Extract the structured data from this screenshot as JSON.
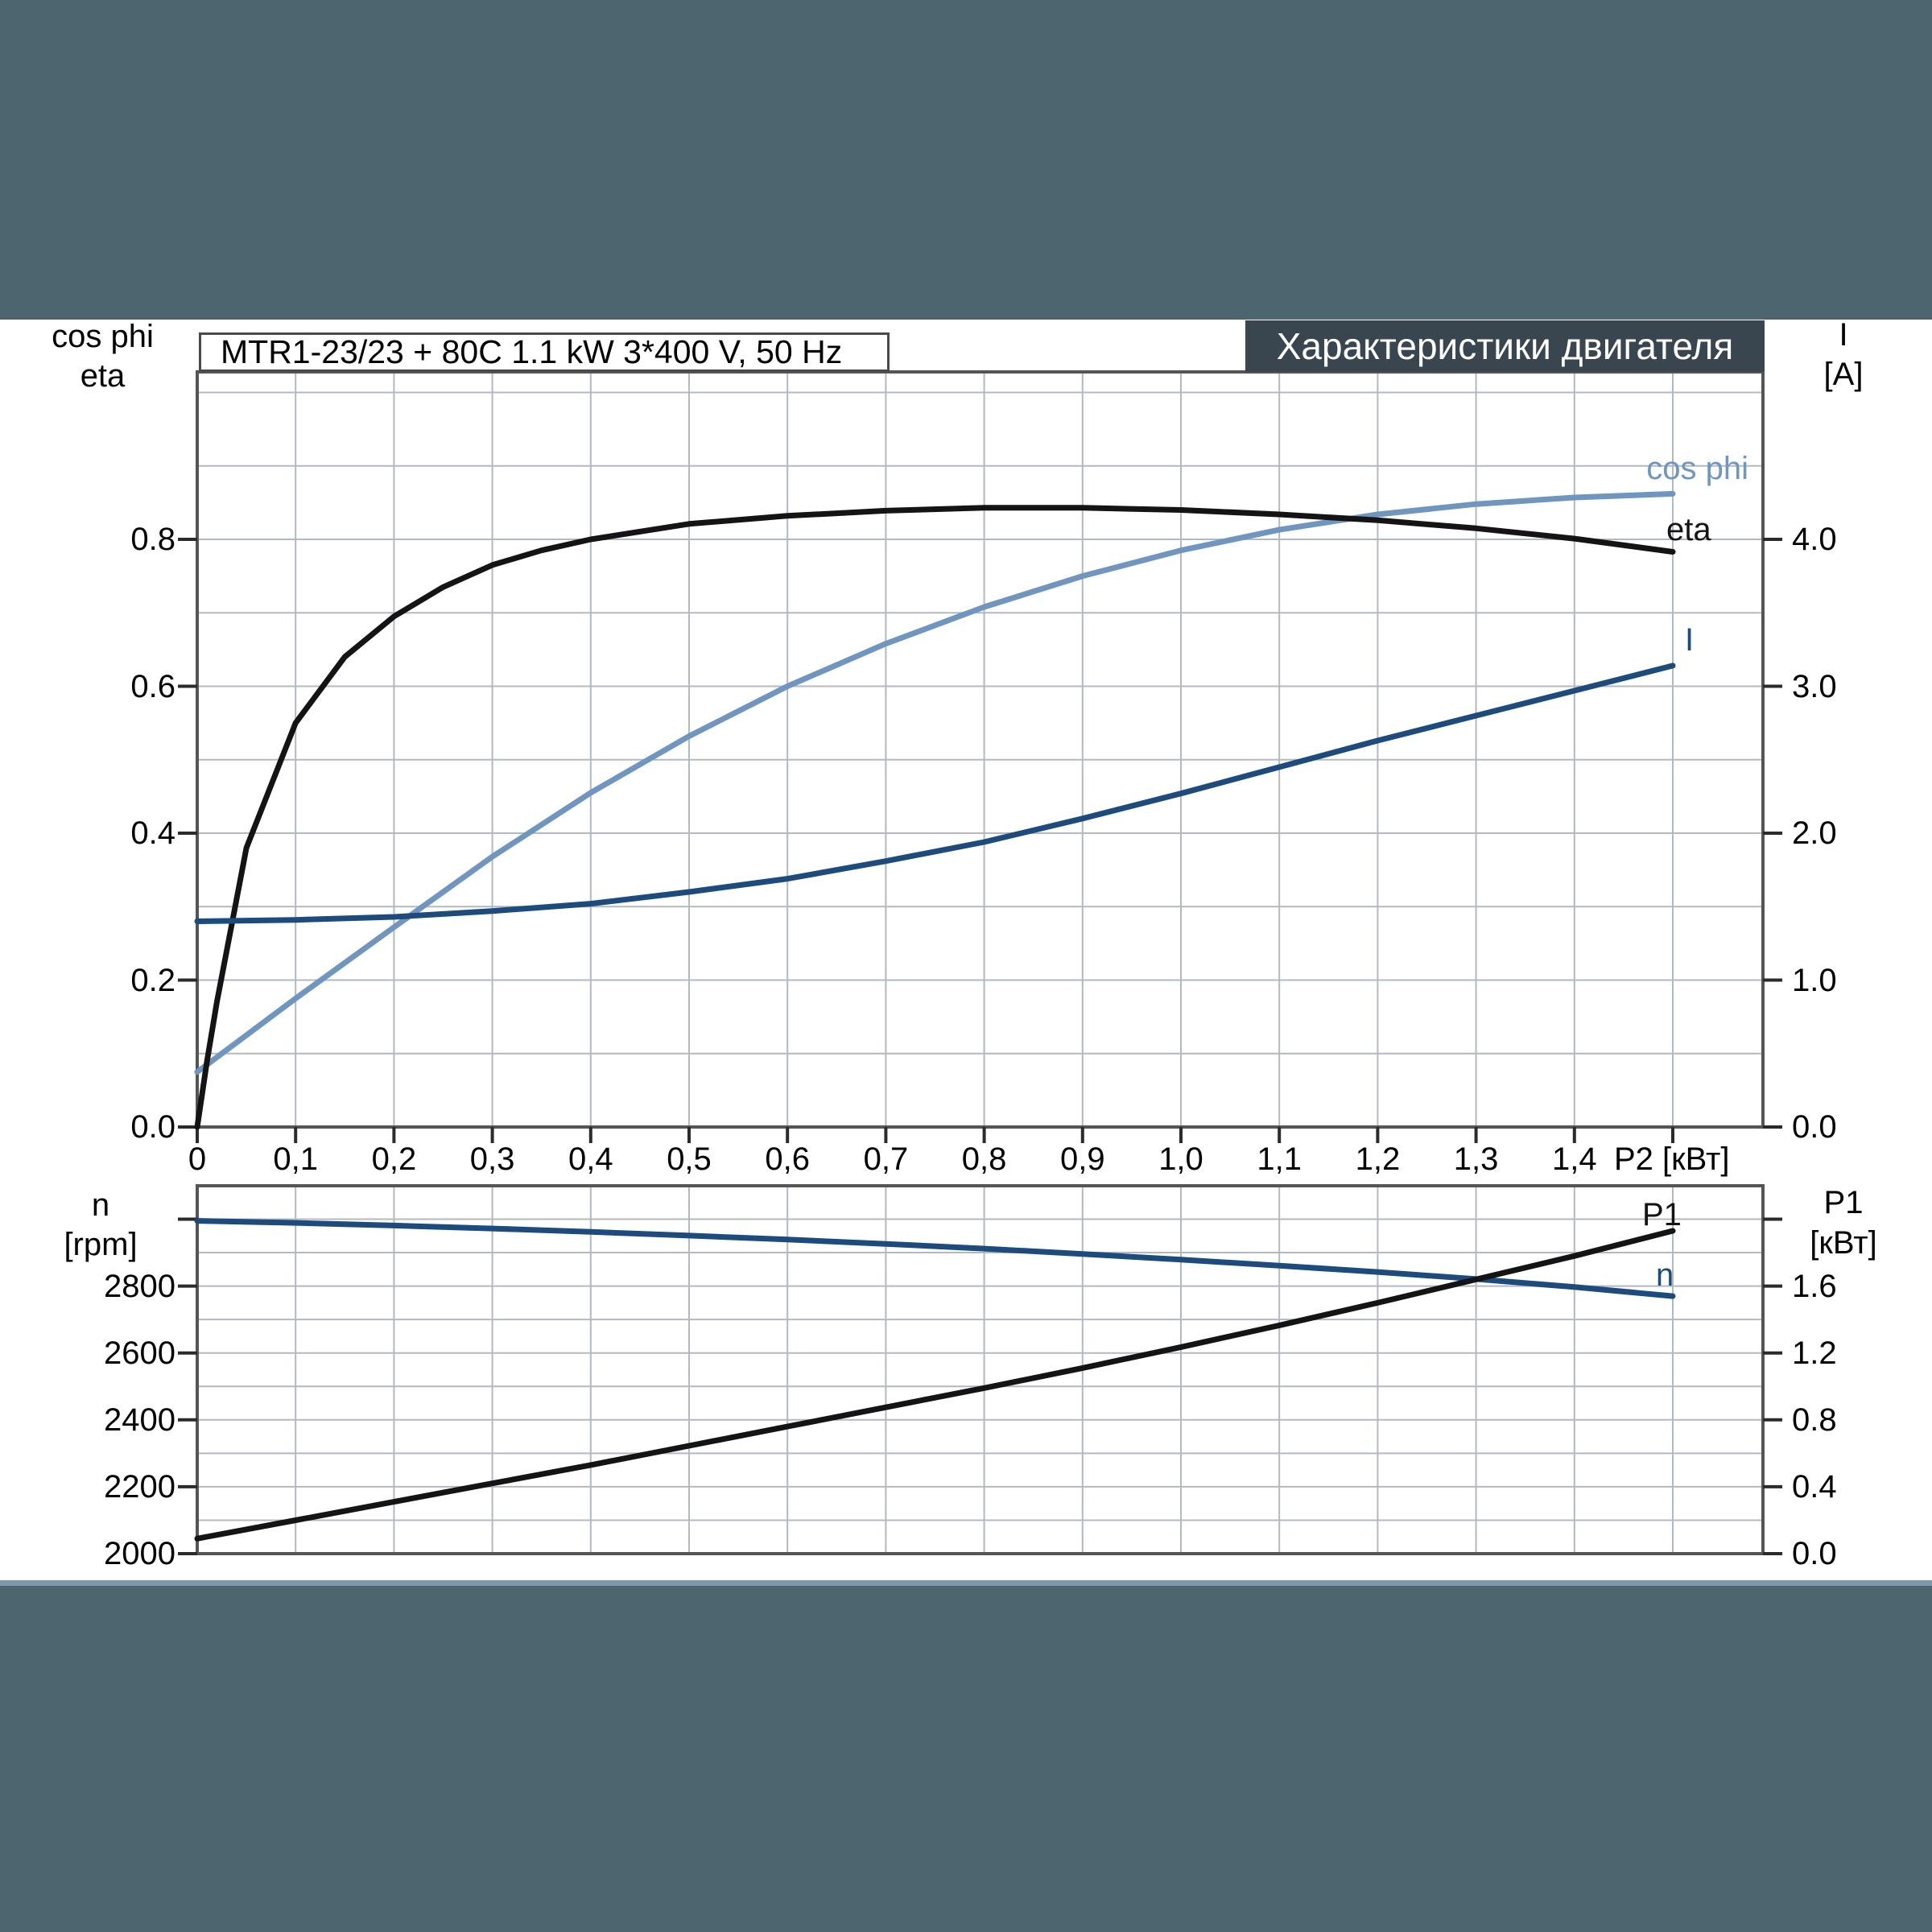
{
  "page": {
    "background_color": "#4d656e",
    "content_background": "#ffffff",
    "bottom_rule_color": "#7d98a8"
  },
  "colors": {
    "grid": "#b3b9c1",
    "frame": "#555555",
    "tick": "#2b2b2b",
    "black_curve": "#141414",
    "steel_blue": "#7095bf",
    "navy": "#1d4b7d",
    "badge_bg": "#39464f",
    "badge_fg": "#ffffff"
  },
  "title_box": {
    "text": "MTR1-23/23 + 80C  1.1 kW  3*400 V, 50 Hz"
  },
  "header_badge": {
    "text": "Характеристики двигателя"
  },
  "top_chart": {
    "left_header": [
      "cos phi",
      "eta"
    ],
    "right_header": [
      "I",
      "[A]"
    ],
    "left_ticks": [
      "0.0",
      "0.2",
      "0.4",
      "0.6",
      "0.8"
    ],
    "right_ticks": [
      "0.0",
      "1.0",
      "2.0",
      "3.0",
      "4.0"
    ],
    "x_ticks": [
      "0",
      "0,1",
      "0,2",
      "0,3",
      "0,4",
      "0,5",
      "0,6",
      "0,7",
      "0,8",
      "0,9",
      "1,0",
      "1,1",
      "1,2",
      "1,3",
      "1,4"
    ],
    "x_unit": "P2 [кВт]",
    "curve_labels": {
      "cos_phi": "cos phi",
      "eta": "eta",
      "current": "I"
    }
  },
  "bottom_chart": {
    "left_header": [
      "n",
      "[rpm]"
    ],
    "right_header": [
      "P1",
      "[кВт]"
    ],
    "left_ticks": [
      "2800",
      "2600",
      "2400",
      "2200",
      "2000"
    ],
    "right_ticks": [
      "1.6",
      "1.2",
      "0.8",
      "0.4",
      "0.0"
    ],
    "curve_labels": {
      "p1": "P1",
      "n": "n"
    }
  },
  "chart_data": [
    {
      "id": "motor-performance-top",
      "type": "line",
      "title": "MTR1-23/23 + 80C  1.1 kW  3*400 V, 50 Hz",
      "xlabel": "P2 [кВт]",
      "x_range": [
        0,
        1.59
      ],
      "grid": true,
      "y_left": {
        "label": "cos phi / eta",
        "range": [
          0,
          1.0
        ],
        "tick_step": 0.2,
        "grid_step": 0.1
      },
      "y_right": {
        "label": "I [A]",
        "range": [
          0,
          5.0
        ],
        "tick_step": 1.0
      },
      "series": [
        {
          "name": "cos phi",
          "axis": "left",
          "color": "#7095bf",
          "points": [
            [
              0,
              0.075
            ],
            [
              0.1,
              0.175
            ],
            [
              0.2,
              0.272
            ],
            [
              0.3,
              0.368
            ],
            [
              0.4,
              0.455
            ],
            [
              0.5,
              0.532
            ],
            [
              0.6,
              0.6
            ],
            [
              0.7,
              0.658
            ],
            [
              0.8,
              0.708
            ],
            [
              0.9,
              0.75
            ],
            [
              1.0,
              0.785
            ],
            [
              1.1,
              0.813
            ],
            [
              1.2,
              0.834
            ],
            [
              1.3,
              0.848
            ],
            [
              1.4,
              0.857
            ],
            [
              1.5,
              0.862
            ]
          ]
        },
        {
          "name": "eta",
          "axis": "left",
          "color": "#141414",
          "points": [
            [
              0,
              0
            ],
            [
              0.01,
              0.09
            ],
            [
              0.02,
              0.17
            ],
            [
              0.05,
              0.38
            ],
            [
              0.1,
              0.55
            ],
            [
              0.15,
              0.64
            ],
            [
              0.2,
              0.695
            ],
            [
              0.25,
              0.735
            ],
            [
              0.3,
              0.765
            ],
            [
              0.35,
              0.785
            ],
            [
              0.4,
              0.8
            ],
            [
              0.5,
              0.821
            ],
            [
              0.6,
              0.832
            ],
            [
              0.7,
              0.839
            ],
            [
              0.8,
              0.843
            ],
            [
              0.9,
              0.843
            ],
            [
              1.0,
              0.84
            ],
            [
              1.1,
              0.834
            ],
            [
              1.2,
              0.826
            ],
            [
              1.3,
              0.815
            ],
            [
              1.4,
              0.801
            ],
            [
              1.5,
              0.783
            ]
          ]
        },
        {
          "name": "I",
          "axis": "right",
          "color": "#1d4b7d",
          "points": [
            [
              0,
              1.4
            ],
            [
              0.1,
              1.41
            ],
            [
              0.2,
              1.43
            ],
            [
              0.3,
              1.47
            ],
            [
              0.4,
              1.52
            ],
            [
              0.5,
              1.6
            ],
            [
              0.6,
              1.69
            ],
            [
              0.7,
              1.81
            ],
            [
              0.8,
              1.94
            ],
            [
              0.9,
              2.1
            ],
            [
              1.0,
              2.27
            ],
            [
              1.1,
              2.45
            ],
            [
              1.2,
              2.63
            ],
            [
              1.3,
              2.8
            ],
            [
              1.4,
              2.97
            ],
            [
              1.5,
              3.14
            ]
          ]
        }
      ]
    },
    {
      "id": "motor-performance-bottom",
      "type": "line",
      "xlabel": "P2 [кВт]",
      "x_range": [
        0,
        1.59
      ],
      "grid": true,
      "y_left": {
        "label": "n [rpm]",
        "range": [
          2000,
          3100
        ],
        "tick_step": 200,
        "grid_step": 100
      },
      "y_right": {
        "label": "P1 [кВт]",
        "range": [
          0,
          2.2
        ],
        "tick_step": 0.4,
        "grid_step": 0.2
      },
      "series": [
        {
          "name": "n",
          "axis": "left",
          "color": "#1d4b7d",
          "points": [
            [
              0,
              2995
            ],
            [
              0.1,
              2989
            ],
            [
              0.2,
              2981
            ],
            [
              0.3,
              2972
            ],
            [
              0.4,
              2962
            ],
            [
              0.5,
              2951
            ],
            [
              0.6,
              2939
            ],
            [
              0.7,
              2926
            ],
            [
              0.8,
              2912
            ],
            [
              0.9,
              2896
            ],
            [
              1.0,
              2879
            ],
            [
              1.1,
              2861
            ],
            [
              1.2,
              2842
            ],
            [
              1.3,
              2821
            ],
            [
              1.4,
              2797
            ],
            [
              1.5,
              2770
            ]
          ]
        },
        {
          "name": "P1",
          "axis": "right",
          "color": "#141414",
          "points": [
            [
              0,
              0.09
            ],
            [
              0.1,
              0.2
            ],
            [
              0.2,
              0.31
            ],
            [
              0.3,
              0.42
            ],
            [
              0.4,
              0.53
            ],
            [
              0.5,
              0.645
            ],
            [
              0.6,
              0.76
            ],
            [
              0.7,
              0.875
            ],
            [
              0.8,
              0.99
            ],
            [
              0.9,
              1.11
            ],
            [
              1.0,
              1.235
            ],
            [
              1.1,
              1.365
            ],
            [
              1.2,
              1.5
            ],
            [
              1.3,
              1.64
            ],
            [
              1.4,
              1.78
            ],
            [
              1.5,
              1.93
            ]
          ]
        }
      ]
    }
  ]
}
